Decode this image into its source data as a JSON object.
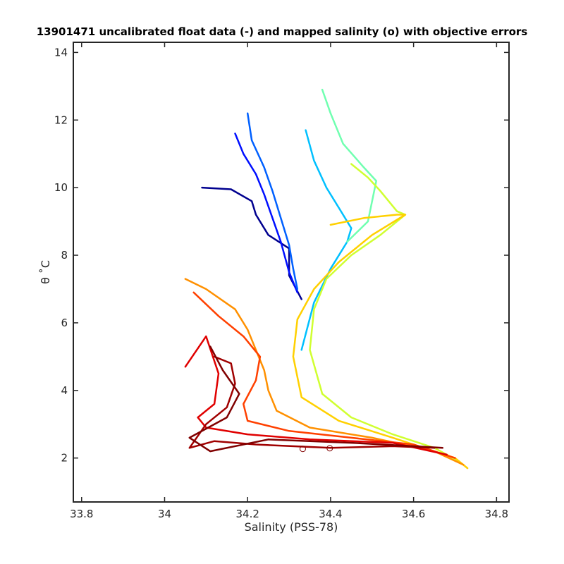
{
  "chart_data": {
    "type": "line",
    "title": "13901471 uncalibrated float data (-) and mapped salinity (o) with objective errors",
    "xlabel": "Salinity (PSS-78)",
    "ylabel": "θ ˚C",
    "xlim": [
      33.78,
      34.83
    ],
    "ylim": [
      0.7,
      14.3
    ],
    "xticks": [
      33.8,
      34,
      34.2,
      34.4,
      34.6,
      34.8
    ],
    "xtick_labels": [
      "33.8",
      "34",
      "34.2",
      "34.4",
      "34.6",
      "34.8"
    ],
    "yticks": [
      2,
      4,
      6,
      8,
      10,
      12,
      14
    ],
    "ytick_labels": [
      "2",
      "4",
      "6",
      "8",
      "10",
      "12",
      "14"
    ],
    "grid": false,
    "colormap": "jet",
    "series": [
      {
        "color": "#00008f",
        "x": [
          34.09,
          34.16,
          34.21,
          34.22,
          34.25,
          34.3,
          34.3,
          34.33
        ],
        "y": [
          10.0,
          9.95,
          9.6,
          9.2,
          8.6,
          8.2,
          7.4,
          6.7
        ]
      },
      {
        "color": "#000fff",
        "x": [
          34.17,
          34.19,
          34.22,
          34.24,
          34.26,
          34.28,
          34.3,
          34.32
        ],
        "y": [
          11.6,
          11.0,
          10.4,
          9.8,
          9.1,
          8.4,
          7.5,
          6.9
        ]
      },
      {
        "color": "#0060ff",
        "x": [
          34.2,
          34.21,
          34.24,
          34.26,
          34.28,
          34.3,
          34.31,
          34.32
        ],
        "y": [
          12.2,
          11.4,
          10.6,
          9.9,
          9.1,
          8.3,
          7.6,
          7.0
        ]
      },
      {
        "color": "#00c0ff",
        "x": [
          34.34,
          34.36,
          34.39,
          34.42,
          34.45,
          34.44,
          34.4,
          34.36,
          34.33
        ],
        "y": [
          11.7,
          10.8,
          10.0,
          9.4,
          8.8,
          8.4,
          7.6,
          6.6,
          5.2
        ]
      },
      {
        "color": "#70ffb0",
        "x": [
          34.38,
          34.4,
          34.43,
          34.48,
          34.51,
          34.49,
          34.44
        ],
        "y": [
          12.9,
          12.2,
          11.3,
          10.6,
          10.2,
          9.0,
          8.4
        ]
      },
      {
        "color": "#d0ff30",
        "x": [
          34.45,
          34.49,
          34.52,
          34.54,
          34.56,
          34.58,
          34.52,
          34.45,
          34.39,
          34.36,
          34.35,
          34.38,
          34.45,
          34.55,
          34.65,
          34.71
        ],
        "y": [
          10.7,
          10.3,
          9.9,
          9.6,
          9.3,
          9.2,
          8.6,
          8.0,
          7.3,
          6.4,
          5.2,
          3.9,
          3.2,
          2.7,
          2.3,
          1.9
        ]
      },
      {
        "color": "#ffd000",
        "x": [
          34.4,
          34.48,
          34.56,
          34.58,
          34.5,
          34.42,
          34.36,
          34.32,
          34.31,
          34.33,
          34.42,
          34.55,
          34.7,
          34.73
        ],
        "y": [
          8.9,
          9.1,
          9.2,
          9.2,
          8.6,
          7.8,
          7.0,
          6.1,
          5.0,
          3.8,
          3.1,
          2.6,
          2.0,
          1.7
        ]
      },
      {
        "color": "#ff9000",
        "x": [
          34.05,
          34.1,
          34.17,
          34.2,
          34.22,
          34.24,
          34.25,
          34.27,
          34.35,
          34.5,
          34.65,
          34.72
        ],
        "y": [
          7.3,
          7.0,
          6.4,
          5.8,
          5.2,
          4.6,
          4.0,
          3.4,
          2.9,
          2.6,
          2.2,
          1.8
        ]
      },
      {
        "color": "#ff4000",
        "x": [
          34.07,
          34.13,
          34.19,
          34.23,
          34.22,
          34.19,
          34.2,
          34.3,
          34.45,
          34.6,
          34.7
        ],
        "y": [
          6.9,
          6.2,
          5.6,
          5.0,
          4.3,
          3.6,
          3.1,
          2.8,
          2.6,
          2.4,
          2.0
        ]
      },
      {
        "color": "#e00000",
        "x": [
          34.05,
          34.1,
          34.13,
          34.12,
          34.08,
          34.1,
          34.2,
          34.35,
          34.55,
          34.68
        ],
        "y": [
          4.7,
          5.6,
          4.5,
          3.6,
          3.2,
          2.9,
          2.7,
          2.55,
          2.45,
          2.1
        ]
      },
      {
        "color": "#a00000",
        "x": [
          34.12,
          34.16,
          34.17,
          34.15,
          34.1,
          34.06,
          34.12,
          34.22,
          34.4,
          34.55,
          34.65
        ],
        "y": [
          5.0,
          4.8,
          4.2,
          3.5,
          3.0,
          2.3,
          2.5,
          2.4,
          2.3,
          2.35,
          2.3
        ]
      },
      {
        "color": "#800000",
        "x": [
          34.11,
          34.14,
          34.18,
          34.15,
          34.06,
          34.11,
          34.25,
          34.45,
          34.6,
          34.67
        ],
        "y": [
          5.3,
          4.6,
          3.9,
          3.2,
          2.6,
          2.2,
          2.55,
          2.45,
          2.35,
          2.3
        ]
      }
    ],
    "mapped_points": [
      {
        "x": 34.333,
        "y": 2.27,
        "color": "#800000"
      },
      {
        "x": 34.398,
        "y": 2.29,
        "color": "#800000"
      }
    ]
  }
}
